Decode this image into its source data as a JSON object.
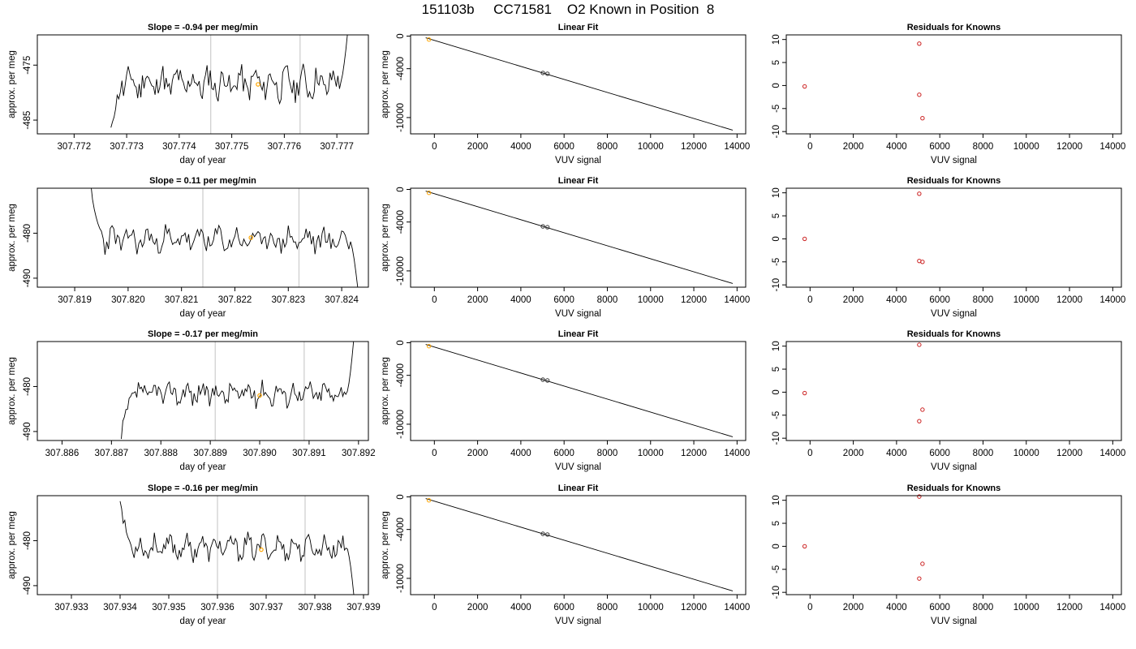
{
  "title": "151103b     CC71581    O2 Known in Position  8",
  "colors": {
    "line": "#000000",
    "vline": "#cccccc",
    "highlight": "#ffa500",
    "knowns": "#cc2222",
    "fit": "#000000"
  },
  "chart_data": [
    {
      "type": "line",
      "title": "Slope =  -0.94  per meg/min",
      "xlabel": "day of year",
      "ylabel": "approx. per meg",
      "xlim": [
        307.7713,
        307.7776
      ],
      "ylim": [
        -487.5,
        -469.5
      ],
      "x_ticks": [
        "307.772",
        "307.773",
        "307.774",
        "307.775",
        "307.776",
        "307.777"
      ],
      "y_ticks": [
        "-475",
        "-485"
      ],
      "vlines": [
        307.7746,
        307.7763
      ],
      "highlight_point": {
        "x": 307.7755,
        "y": -478.5
      },
      "series": [
        {
          "x_start": 307.7727,
          "x_end": 307.7772,
          "start_y": -487.5,
          "mean": -478.3,
          "amp": 2.8,
          "end_y": -469.5,
          "seed": 11
        }
      ]
    },
    {
      "type": "line",
      "title": "Linear Fit",
      "xlabel": "VUV signal",
      "ylabel": "approx. per meg",
      "xlim": [
        -1100,
        14400
      ],
      "ylim": [
        -12000,
        150
      ],
      "x_ticks": [
        "0",
        "2000",
        "4000",
        "6000",
        "8000",
        "10000",
        "12000",
        "14000"
      ],
      "y_ticks": [
        "0",
        "-4000",
        "-10000"
      ],
      "fit": {
        "x": [
          -400,
          13800
        ],
        "y": [
          -200,
          -11550
        ]
      },
      "points": [
        {
          "x": -250,
          "y": -420,
          "color": "orange"
        },
        {
          "x": 5020,
          "y": -4520
        },
        {
          "x": 5230,
          "y": -4620
        }
      ]
    },
    {
      "type": "scatter",
      "title": "Residuals for Knowns",
      "xlabel": "VUV signal",
      "ylabel": "",
      "xlim": [
        -1100,
        14400
      ],
      "ylim": [
        -10.5,
        11
      ],
      "x_ticks": [
        "0",
        "2000",
        "4000",
        "6000",
        "8000",
        "10000",
        "12000",
        "14000"
      ],
      "y_ticks": [
        "10",
        "5",
        "0",
        "-5",
        "-10"
      ],
      "points": [
        {
          "x": -250,
          "y": -0.2
        },
        {
          "x": 5050,
          "y": 9.1
        },
        {
          "x": 5050,
          "y": -2.0
        },
        {
          "x": 5200,
          "y": -7.1
        }
      ]
    },
    {
      "type": "line",
      "title": "Slope =  0.11  per meg/min",
      "xlabel": "day of year",
      "ylabel": "approx. per meg",
      "xlim": [
        307.8183,
        307.8245
      ],
      "ylim": [
        -492,
        -470
      ],
      "x_ticks": [
        "307.819",
        "307.820",
        "307.821",
        "307.822",
        "307.823",
        "307.824"
      ],
      "y_ticks": [
        "-480",
        "-490"
      ],
      "vlines": [
        307.8214,
        307.8232
      ],
      "highlight_point": {
        "x": 307.8223,
        "y": -481
      },
      "series": [
        {
          "x_start": 307.8193,
          "x_end": 307.8243,
          "start_y": -470,
          "mean": -481.5,
          "amp": 2.8,
          "end_y": -492,
          "seed": 23
        }
      ]
    },
    {
      "type": "line",
      "title": "Linear Fit",
      "xlabel": "VUV signal",
      "ylabel": "approx. per meg",
      "xlim": [
        -1100,
        14400
      ],
      "ylim": [
        -12000,
        150
      ],
      "x_ticks": [
        "0",
        "2000",
        "4000",
        "6000",
        "8000",
        "10000",
        "12000",
        "14000"
      ],
      "y_ticks": [
        "0",
        "-4000",
        "-10000"
      ],
      "fit": {
        "x": [
          -400,
          13800
        ],
        "y": [
          -200,
          -11550
        ]
      },
      "points": [
        {
          "x": -250,
          "y": -420,
          "color": "orange"
        },
        {
          "x": 5020,
          "y": -4540
        },
        {
          "x": 5230,
          "y": -4640
        }
      ]
    },
    {
      "type": "scatter",
      "title": "Residuals for Knowns",
      "xlabel": "VUV signal",
      "ylabel": "",
      "xlim": [
        -1100,
        14400
      ],
      "ylim": [
        -10.5,
        11
      ],
      "x_ticks": [
        "0",
        "2000",
        "4000",
        "6000",
        "8000",
        "10000",
        "12000",
        "14000"
      ],
      "y_ticks": [
        "10",
        "5",
        "0",
        "-5",
        "-10"
      ],
      "points": [
        {
          "x": -250,
          "y": 0.0
        },
        {
          "x": 5050,
          "y": 9.8
        },
        {
          "x": 5050,
          "y": -4.8
        },
        {
          "x": 5200,
          "y": -5.0
        }
      ]
    },
    {
      "type": "line",
      "title": "Slope =  -0.17  per meg/min",
      "xlabel": "day of year",
      "ylabel": "approx. per meg",
      "xlim": [
        307.8855,
        307.8922
      ],
      "ylim": [
        -492,
        -470
      ],
      "x_ticks": [
        "307.886",
        "307.887",
        "307.888",
        "307.889",
        "307.890",
        "307.891",
        "307.892"
      ],
      "y_ticks": [
        "-480",
        "-490"
      ],
      "vlines": [
        307.8891,
        307.8909
      ],
      "highlight_point": {
        "x": 307.89,
        "y": -482
      },
      "series": [
        {
          "x_start": 307.8872,
          "x_end": 307.8919,
          "start_y": -492,
          "mean": -481.5,
          "amp": 2.5,
          "end_y": -470,
          "seed": 37
        }
      ]
    },
    {
      "type": "line",
      "title": "Linear Fit",
      "xlabel": "VUV signal",
      "ylabel": "approx. per meg",
      "xlim": [
        -1100,
        14400
      ],
      "ylim": [
        -12000,
        150
      ],
      "x_ticks": [
        "0",
        "2000",
        "4000",
        "6000",
        "8000",
        "10000",
        "12000",
        "14000"
      ],
      "y_ticks": [
        "0",
        "-4000",
        "-10000"
      ],
      "fit": {
        "x": [
          -400,
          13800
        ],
        "y": [
          -200,
          -11550
        ]
      },
      "points": [
        {
          "x": -250,
          "y": -420,
          "color": "orange"
        },
        {
          "x": 5020,
          "y": -4530
        },
        {
          "x": 5230,
          "y": -4630
        }
      ]
    },
    {
      "type": "scatter",
      "title": "Residuals for Knowns",
      "xlabel": "VUV signal",
      "ylabel": "",
      "xlim": [
        -1100,
        14400
      ],
      "ylim": [
        -10.5,
        11
      ],
      "x_ticks": [
        "0",
        "2000",
        "4000",
        "6000",
        "8000",
        "10000",
        "12000",
        "14000"
      ],
      "y_ticks": [
        "10",
        "5",
        "0",
        "-5",
        "-10"
      ],
      "points": [
        {
          "x": -250,
          "y": -0.2
        },
        {
          "x": 5050,
          "y": 10.3
        },
        {
          "x": 5050,
          "y": -6.3
        },
        {
          "x": 5200,
          "y": -3.8
        }
      ]
    },
    {
      "type": "line",
      "title": "Slope =  -0.16  per meg/min",
      "xlabel": "day of year",
      "ylabel": "approx. per meg",
      "xlim": [
        307.9323,
        307.9391
      ],
      "ylim": [
        -492,
        -470
      ],
      "x_ticks": [
        "307.933",
        "307.934",
        "307.935",
        "307.936",
        "307.937",
        "307.938",
        "307.939"
      ],
      "y_ticks": [
        "-480",
        "-490"
      ],
      "vlines": [
        307.936,
        307.9378
      ],
      "highlight_point": {
        "x": 307.9369,
        "y": -482
      },
      "series": [
        {
          "x_start": 307.934,
          "x_end": 307.9388,
          "start_y": -470,
          "mean": -481.5,
          "amp": 2.5,
          "end_y": -492,
          "seed": 53
        }
      ]
    },
    {
      "type": "line",
      "title": "Linear Fit",
      "xlabel": "VUV signal",
      "ylabel": "approx. per meg",
      "xlim": [
        -1100,
        14400
      ],
      "ylim": [
        -12000,
        150
      ],
      "x_ticks": [
        "0",
        "2000",
        "4000",
        "6000",
        "8000",
        "10000",
        "12000",
        "14000"
      ],
      "y_ticks": [
        "0",
        "-4000",
        "-10000"
      ],
      "fit": {
        "x": [
          -400,
          13800
        ],
        "y": [
          -200,
          -11550
        ]
      },
      "points": [
        {
          "x": -250,
          "y": -420,
          "color": "orange"
        },
        {
          "x": 5020,
          "y": -4530
        },
        {
          "x": 5230,
          "y": -4620
        }
      ]
    },
    {
      "type": "scatter",
      "title": "Residuals for Knowns",
      "xlabel": "VUV signal",
      "ylabel": "",
      "xlim": [
        -1100,
        14400
      ],
      "ylim": [
        -10.5,
        11
      ],
      "x_ticks": [
        "0",
        "2000",
        "4000",
        "6000",
        "8000",
        "10000",
        "12000",
        "14000"
      ],
      "y_ticks": [
        "10",
        "5",
        "0",
        "-5",
        "-10"
      ],
      "points": [
        {
          "x": -250,
          "y": 0.0
        },
        {
          "x": 5050,
          "y": 10.8
        },
        {
          "x": 5050,
          "y": -7.0
        },
        {
          "x": 5200,
          "y": -3.8
        }
      ]
    }
  ]
}
